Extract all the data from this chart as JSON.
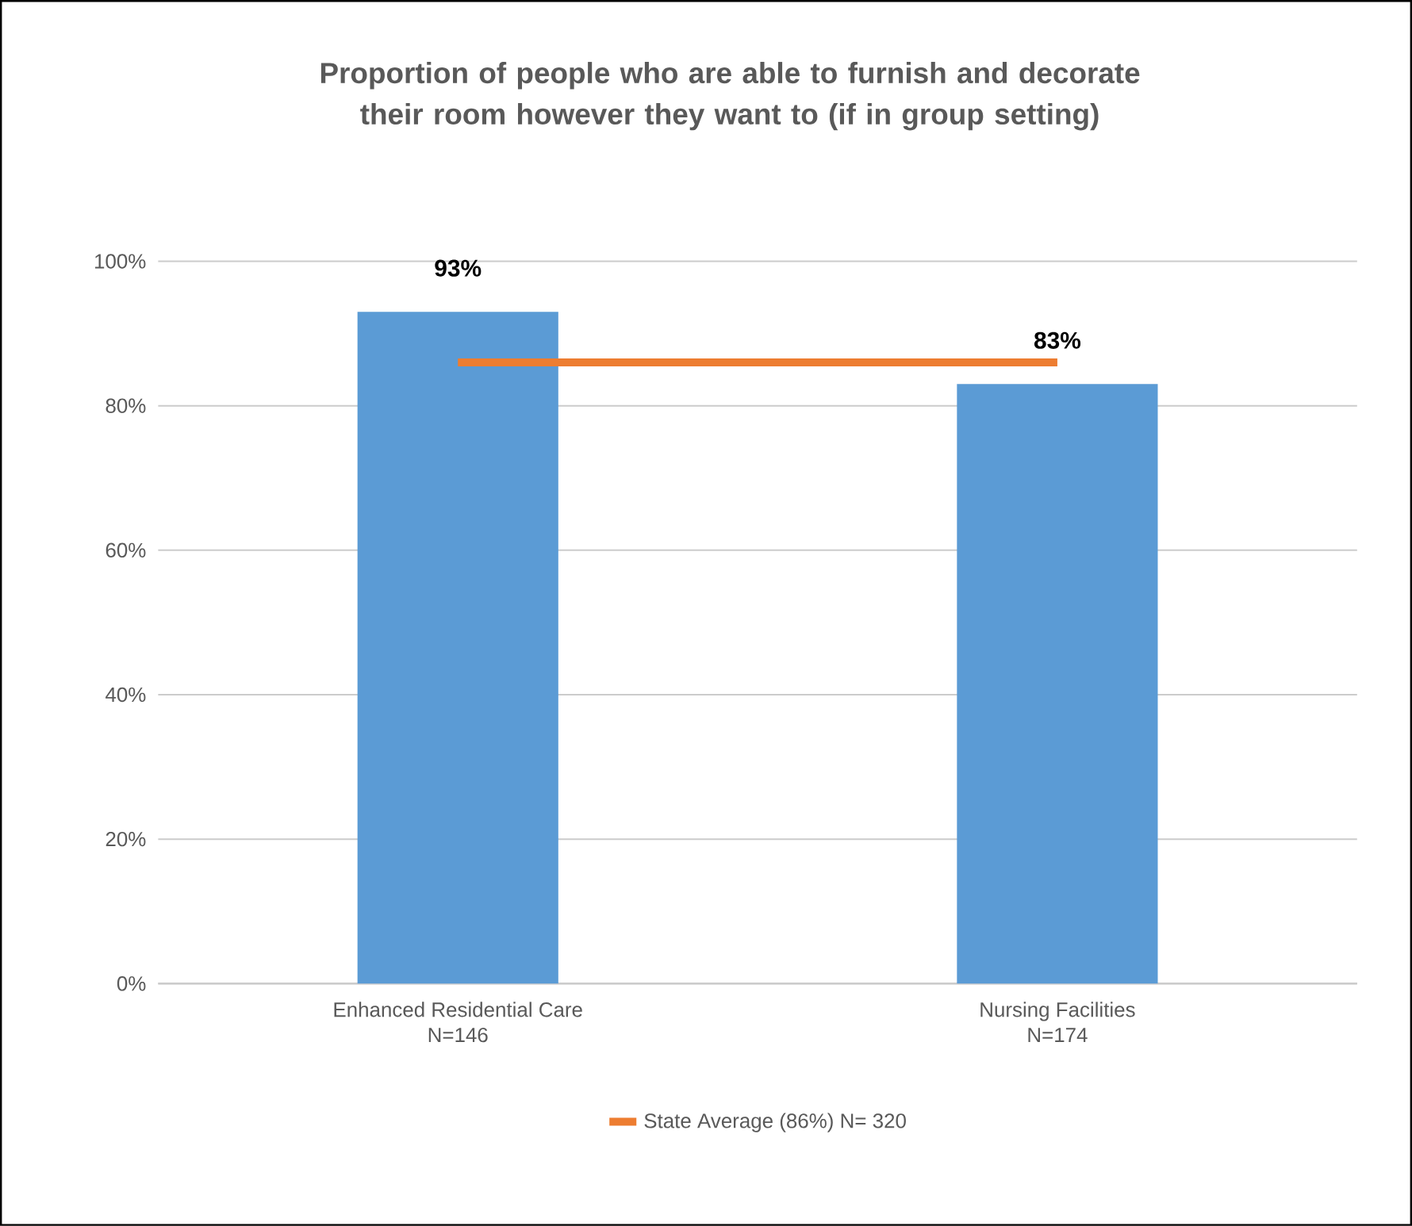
{
  "chart_data": {
    "type": "bar",
    "title": "Proportion of people who are able to furnish and decorate their room however they want to (if in group setting)",
    "categories": [
      "Enhanced Residential Care\nN=146",
      "Nursing Facilities\nN=174"
    ],
    "series": [
      {
        "color": "#5b9bd5",
        "values": [
          93,
          83
        ],
        "value_labels": [
          "93%",
          "83%"
        ]
      },
      {
        "type": "line",
        "name": "State Average (86%) N= 320",
        "color": "#ed7d31",
        "values": [
          86,
          86
        ]
      }
    ],
    "ylim": [
      0,
      100
    ],
    "yticks": [
      {
        "value": 0,
        "label": "0%"
      },
      {
        "value": 20,
        "label": "20%"
      },
      {
        "value": 40,
        "label": "40%"
      },
      {
        "value": 60,
        "label": "60%"
      },
      {
        "value": 80,
        "label": "80%"
      },
      {
        "value": 100,
        "label": "100%"
      }
    ],
    "grid": "y",
    "legend": "bottom",
    "marker": "none",
    "line_style": "solid"
  }
}
